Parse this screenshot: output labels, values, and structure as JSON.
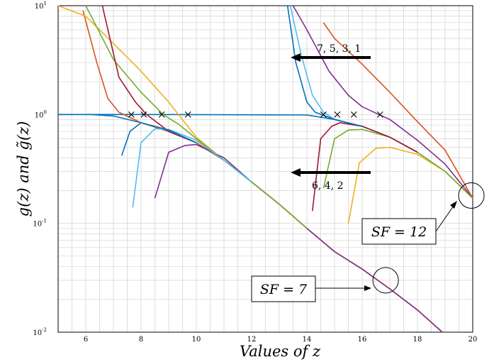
{
  "chart_data": {
    "type": "line",
    "xlabel": "Values of z",
    "ylabel": "g(z) and g̃(z)",
    "xlim": [
      5,
      20
    ],
    "ylim": [
      0.01,
      10
    ],
    "yscale": "log",
    "grid": true,
    "x_ticks": [
      "6",
      "8",
      "10",
      "12",
      "14",
      "16",
      "18",
      "20"
    ],
    "y_ticks": [
      {
        "base": "10",
        "exp": "-2"
      },
      {
        "base": "10",
        "exp": "-1"
      },
      {
        "base": "10",
        "exp": "0"
      },
      {
        "base": "10",
        "exp": "1"
      }
    ],
    "annotations": {
      "odd": "7, 5, 3, 1",
      "even": "6, 4, 2",
      "sf12": "SF = 12",
      "sf7": "SF = 7"
    },
    "series": [
      {
        "color": "#0072BD",
        "points": [
          [
            5,
            1.0
          ],
          [
            8,
            1.0
          ],
          [
            14,
            0.99
          ],
          [
            15,
            0.9
          ],
          [
            16,
            0.78
          ],
          [
            17,
            0.62
          ],
          [
            18,
            0.45
          ],
          [
            19,
            0.3
          ],
          [
            20,
            0.17
          ]
        ]
      },
      {
        "color": "#0072BD",
        "points": [
          [
            5,
            1.0
          ],
          [
            6.2,
            1.0
          ],
          [
            7,
            0.97
          ],
          [
            8,
            0.84
          ],
          [
            9,
            0.7
          ],
          [
            10,
            0.55
          ],
          [
            11,
            0.38
          ],
          [
            12,
            0.24
          ],
          [
            13,
            0.15
          ],
          [
            14,
            0.09
          ],
          [
            15,
            0.055
          ],
          [
            16,
            0.038
          ],
          [
            17,
            0.025
          ],
          [
            18,
            0.016
          ],
          [
            18.9,
            0.01
          ]
        ]
      },
      {
        "color": "#D95319",
        "points": [
          [
            14.6,
            7
          ],
          [
            15,
            5
          ],
          [
            16,
            2.9
          ],
          [
            17,
            1.6
          ],
          [
            18,
            0.86
          ],
          [
            19,
            0.47
          ],
          [
            20,
            0.17
          ]
        ]
      },
      {
        "color": "#D95319",
        "points": [
          [
            5.9,
            9
          ],
          [
            6.4,
            3
          ],
          [
            6.8,
            1.4
          ],
          [
            7.2,
            1.05
          ],
          [
            8,
            0.84
          ],
          [
            9,
            0.7
          ],
          [
            10,
            0.55
          ],
          [
            11,
            0.38
          ],
          [
            12,
            0.24
          ],
          [
            13,
            0.15
          ],
          [
            14,
            0.09
          ],
          [
            15,
            0.055
          ],
          [
            16,
            0.038
          ],
          [
            17,
            0.025
          ],
          [
            18,
            0.016
          ],
          [
            18.9,
            0.01
          ]
        ]
      },
      {
        "color": "#EDB120",
        "points": [
          [
            5,
            10
          ],
          [
            6,
            8
          ],
          [
            7,
            4.5
          ],
          [
            8,
            2.5
          ],
          [
            9,
            1.3
          ],
          [
            10,
            0.62
          ],
          [
            11,
            0.38
          ],
          [
            12,
            0.24
          ],
          [
            13,
            0.15
          ],
          [
            14,
            0.09
          ],
          [
            15,
            0.055
          ],
          [
            16,
            0.038
          ],
          [
            17,
            0.025
          ],
          [
            18,
            0.016
          ],
          [
            18.9,
            0.01
          ]
        ]
      },
      {
        "color": "#EDB120",
        "points": [
          [
            15.5,
            0.1
          ],
          [
            15.9,
            0.36
          ],
          [
            16.5,
            0.49
          ],
          [
            17,
            0.5
          ],
          [
            18,
            0.43
          ],
          [
            19,
            0.3
          ],
          [
            20,
            0.17
          ]
        ]
      },
      {
        "color": "#7E2F8E",
        "points": [
          [
            13.5,
            10
          ],
          [
            14,
            6
          ],
          [
            14.8,
            2.5
          ],
          [
            15.5,
            1.5
          ],
          [
            16,
            1.18
          ],
          [
            16.6,
            1.0
          ],
          [
            17,
            0.9
          ],
          [
            18,
            0.58
          ],
          [
            19,
            0.35
          ],
          [
            20,
            0.17
          ]
        ]
      },
      {
        "color": "#7E2F8E",
        "points": [
          [
            8.5,
            0.17
          ],
          [
            9,
            0.45
          ],
          [
            9.6,
            0.52
          ],
          [
            10,
            0.53
          ],
          [
            11,
            0.4
          ],
          [
            12,
            0.24
          ],
          [
            13,
            0.15
          ],
          [
            14,
            0.09
          ],
          [
            15,
            0.055
          ],
          [
            16,
            0.038
          ],
          [
            17,
            0.025
          ],
          [
            18,
            0.016
          ],
          [
            18.9,
            0.01
          ]
        ]
      },
      {
        "color": "#77AC30",
        "points": [
          [
            6,
            10
          ],
          [
            7,
            3.2
          ],
          [
            8,
            1.6
          ],
          [
            8.8,
            1.0
          ],
          [
            9.4,
            0.8
          ],
          [
            10,
            0.6
          ],
          [
            11,
            0.38
          ],
          [
            12,
            0.24
          ],
          [
            13,
            0.15
          ],
          [
            14,
            0.09
          ]
        ]
      },
      {
        "color": "#77AC30",
        "points": [
          [
            14.6,
            0.21
          ],
          [
            15,
            0.6
          ],
          [
            15.5,
            0.72
          ],
          [
            16,
            0.73
          ],
          [
            17,
            0.62
          ],
          [
            18,
            0.45
          ],
          [
            19,
            0.3
          ],
          [
            20,
            0.17
          ]
        ]
      },
      {
        "color": "#4DBEEE",
        "points": [
          [
            13.4,
            10
          ],
          [
            13.8,
            3.5
          ],
          [
            14.2,
            1.5
          ],
          [
            14.6,
            1.05
          ],
          [
            15,
            0.9
          ],
          [
            16,
            0.78
          ],
          [
            17,
            0.62
          ]
        ]
      },
      {
        "color": "#4DBEEE",
        "points": [
          [
            7.7,
            0.14
          ],
          [
            8,
            0.55
          ],
          [
            8.5,
            0.74
          ],
          [
            9,
            0.73
          ],
          [
            10,
            0.58
          ],
          [
            11,
            0.38
          ],
          [
            12,
            0.24
          ]
        ]
      },
      {
        "color": "#A2142F",
        "points": [
          [
            6.6,
            10
          ],
          [
            7.2,
            2.2
          ],
          [
            7.8,
            1.3
          ],
          [
            8.2,
            1.0
          ],
          [
            9,
            0.7
          ],
          [
            10,
            0.55
          ]
        ]
      },
      {
        "color": "#A2142F",
        "points": [
          [
            14.2,
            0.13
          ],
          [
            14.5,
            0.6
          ],
          [
            14.9,
            0.78
          ],
          [
            15.2,
            0.84
          ],
          [
            16,
            0.78
          ],
          [
            17,
            0.62
          ],
          [
            18,
            0.45
          ]
        ]
      },
      {
        "color": "#0072BD",
        "points": [
          [
            13.3,
            10
          ],
          [
            13.6,
            3
          ],
          [
            14,
            1.3
          ],
          [
            14.3,
            1.05
          ],
          [
            15,
            0.9
          ],
          [
            16,
            0.78
          ]
        ]
      },
      {
        "color": "#0072BD",
        "points": [
          [
            7.3,
            0.42
          ],
          [
            7.6,
            0.7
          ],
          [
            8,
            0.84
          ],
          [
            9,
            0.72
          ],
          [
            10,
            0.55
          ]
        ]
      }
    ],
    "markers": [
      [
        7.65,
        1.0
      ],
      [
        8.1,
        1.0
      ],
      [
        8.75,
        1.0
      ],
      [
        9.7,
        1.0
      ],
      [
        14.6,
        1.0
      ],
      [
        15.1,
        1.0
      ],
      [
        15.7,
        1.0
      ],
      [
        16.65,
        1.0
      ]
    ],
    "circles": [
      [
        19.95,
        0.18
      ],
      [
        16.85,
        0.03
      ]
    ]
  }
}
